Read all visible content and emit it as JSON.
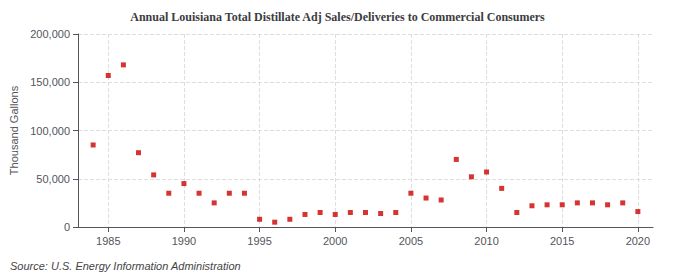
{
  "chart_data": {
    "type": "scatter",
    "title": "Annual Louisiana Total Distillate Adj Sales/Deliveries to Commercial Consumers",
    "y_label": "Thousand Gallons",
    "annotations": [
      "Source: U.S. Energy Information Administration"
    ],
    "x": [
      1984,
      1985,
      1986,
      1987,
      1988,
      1989,
      1990,
      1991,
      1992,
      1993,
      1994,
      1995,
      1996,
      1997,
      1998,
      1999,
      2000,
      2001,
      2002,
      2003,
      2004,
      2005,
      2006,
      2007,
      2008,
      2009,
      2010,
      2011,
      2012,
      2013,
      2014,
      2015,
      2016,
      2017,
      2018,
      2019,
      2020
    ],
    "values": [
      85000,
      157000,
      168000,
      77000,
      54000,
      35000,
      45000,
      35000,
      25000,
      35000,
      35000,
      8000,
      5000,
      8000,
      13000,
      15000,
      13000,
      15000,
      15000,
      14000,
      15000,
      35000,
      30000,
      28000,
      70000,
      52000,
      57000,
      40000,
      15000,
      22000,
      23000,
      23000,
      25000,
      25000,
      23000,
      25000,
      16000
    ],
    "color": "#cc0000",
    "marker": "square",
    "xlim": [
      1983,
      2021
    ],
    "xticks": [
      1985,
      1990,
      1995,
      2000,
      2005,
      2010,
      2015,
      2020
    ],
    "ylim": [
      0,
      200000
    ],
    "yticks": [
      0,
      {
        "value": 50000,
        "label": "50,000"
      },
      {
        "value": 100000,
        "label": "100,000"
      },
      {
        "value": 150000,
        "label": "150,000"
      },
      {
        "value": 200000,
        "label": "200,000"
      }
    ],
    "grid": true
  }
}
